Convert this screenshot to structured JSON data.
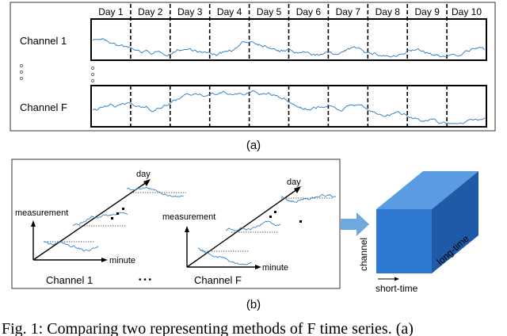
{
  "panel_a": {
    "days": [
      "Day 1",
      "Day 2",
      "Day 3",
      "Day 4",
      "Day 5",
      "Day 6",
      "Day 7",
      "Day 8",
      "Day 9",
      "Day 10"
    ],
    "channel_top": "Channel 1",
    "channel_bottom": "Channel F",
    "label": "(a)"
  },
  "panel_b": {
    "left": {
      "axis_y": "measurement",
      "axis_x": "minute",
      "axis_z": "day",
      "channel": "Channel 1"
    },
    "right": {
      "axis_y": "measurement",
      "axis_x": "minute",
      "axis_z": "day",
      "channel": "Channel F"
    },
    "ellipsis": "• • •",
    "label": "(b)"
  },
  "cube": {
    "axis_channel": "channel",
    "axis_short": "short-time",
    "axis_long": "long-time"
  },
  "caption": "Fig. 1: Comparing two representing methods of F time series. (a)",
  "colors": {
    "series": "#3a86c8",
    "cube_front": "#2e78d4",
    "cube_top": "#5b9be2",
    "cube_side": "#1e5aa8",
    "arrow": "#6fa8dc"
  }
}
